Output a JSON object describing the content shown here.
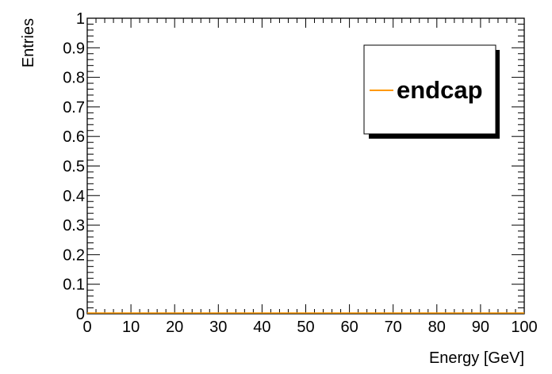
{
  "chart_data": {
    "type": "line",
    "title": "",
    "xlabel": "Energy [GeV]",
    "ylabel": "Entries",
    "xlim": [
      0,
      100
    ],
    "ylim": [
      0,
      1
    ],
    "x_major_ticks": [
      "0",
      "10",
      "20",
      "30",
      "40",
      "50",
      "60",
      "70",
      "80",
      "90",
      "100"
    ],
    "y_major_ticks": [
      "0",
      "0.1",
      "0.2",
      "0.3",
      "0.4",
      "0.5",
      "0.6",
      "0.7",
      "0.8",
      "0.9",
      "1"
    ],
    "grid": false,
    "legend_placement": "top-right",
    "series": [
      {
        "name": "endcap",
        "color": "#ff9900",
        "x": [
          0,
          100
        ],
        "y": [
          0,
          0
        ]
      }
    ]
  }
}
